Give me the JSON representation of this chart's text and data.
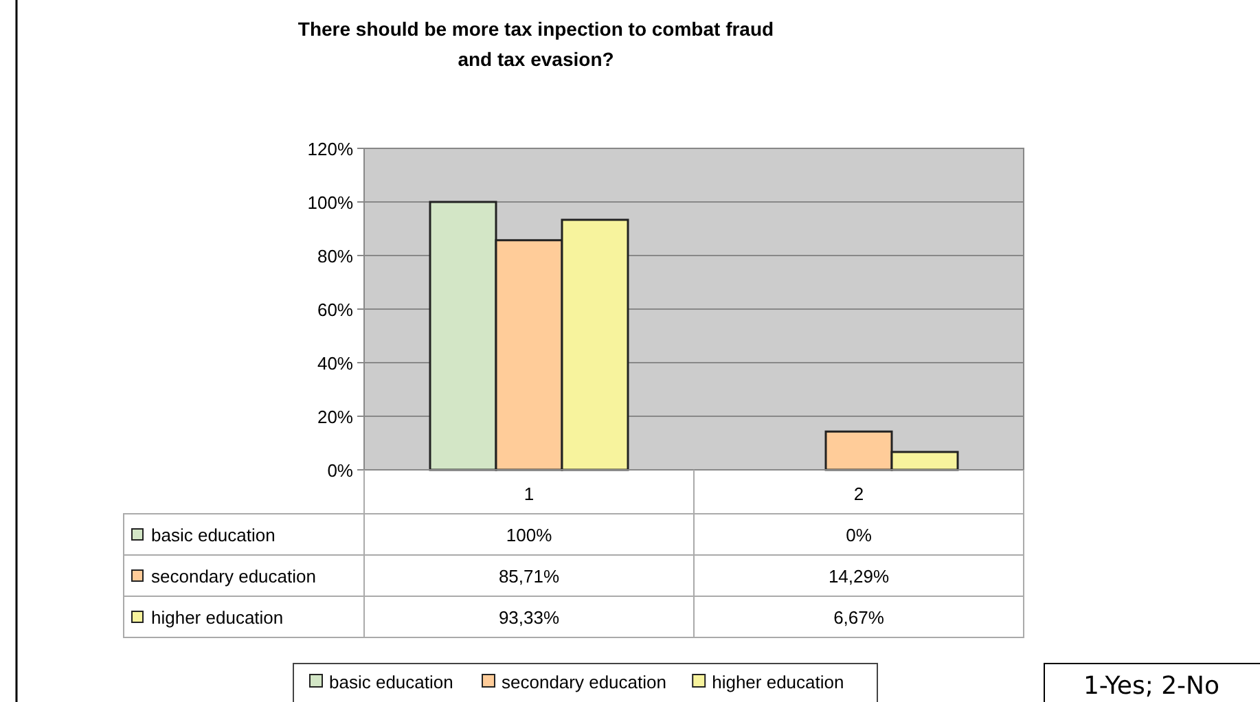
{
  "chart_data": {
    "type": "bar",
    "title": "There should be more tax inpection to combat fraud and tax evasion?",
    "categories": [
      "1",
      "2"
    ],
    "series": [
      {
        "name": "basic education",
        "color": "#d3e6c6",
        "values": [
          100,
          0
        ],
        "value_labels": [
          "100%",
          "0%"
        ]
      },
      {
        "name": "secondary education",
        "color": "#ffcc99",
        "values": [
          85.71,
          14.29
        ],
        "value_labels": [
          "85,71%",
          "14,29%"
        ]
      },
      {
        "name": "higher education",
        "color": "#f7f39d",
        "values": [
          93.33,
          6.67
        ],
        "value_labels": [
          "93,33%",
          "6,67%"
        ]
      }
    ],
    "ylim": [
      0,
      120
    ],
    "yticks": [
      {
        "value": 0,
        "label": "0%"
      },
      {
        "value": 20,
        "label": "20%"
      },
      {
        "value": 40,
        "label": "40%"
      },
      {
        "value": 60,
        "label": "60%"
      },
      {
        "value": 80,
        "label": "80%"
      },
      {
        "value": 100,
        "label": "100%"
      },
      {
        "value": 120,
        "label": "120%"
      }
    ],
    "grid": "y",
    "legend": "bottom",
    "annotations": [
      "1-Yes; 2-No"
    ]
  }
}
